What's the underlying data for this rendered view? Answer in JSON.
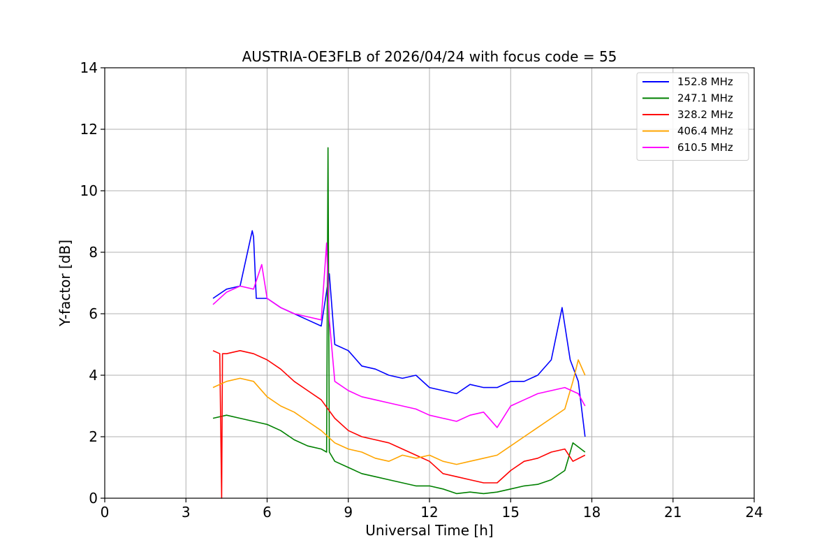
{
  "chart_data": {
    "type": "line",
    "title": "AUSTRIA-OE3FLB of 2026/04/24 with focus code = 55",
    "xlabel": "Universal Time [h]",
    "ylabel": "Y-factor [dB]",
    "xlim": [
      0,
      24
    ],
    "ylim": [
      0,
      14
    ],
    "xticks": [
      0,
      3,
      6,
      9,
      12,
      15,
      18,
      21,
      24
    ],
    "yticks": [
      0,
      2,
      4,
      6,
      8,
      10,
      12,
      14
    ],
    "grid": true,
    "legend_position": "top-right",
    "series": [
      {
        "name": "152.8 MHz",
        "color": "#0000ff",
        "x": [
          4.0,
          4.5,
          5.0,
          5.45,
          5.5,
          5.6,
          6.0,
          6.5,
          7.0,
          7.5,
          8.0,
          8.3,
          8.5,
          9.0,
          9.5,
          10.0,
          10.5,
          11.0,
          11.5,
          12.0,
          12.5,
          13.0,
          13.5,
          14.0,
          14.5,
          15.0,
          15.5,
          16.0,
          16.5,
          16.9,
          17.2,
          17.5,
          17.75
        ],
        "values": [
          6.5,
          6.8,
          6.9,
          8.7,
          8.5,
          6.5,
          6.5,
          6.2,
          6.0,
          5.8,
          5.6,
          7.3,
          5.0,
          4.8,
          4.3,
          4.2,
          4.0,
          3.9,
          4.0,
          3.6,
          3.5,
          3.4,
          3.7,
          3.6,
          3.6,
          3.8,
          3.8,
          4.0,
          4.5,
          6.2,
          4.5,
          3.8,
          2.0
        ]
      },
      {
        "name": "247.1 MHz",
        "color": "#008000",
        "x": [
          4.0,
          4.5,
          5.0,
          5.5,
          6.0,
          6.5,
          7.0,
          7.5,
          8.0,
          8.2,
          8.25,
          8.3,
          8.5,
          9.0,
          9.5,
          10.0,
          10.5,
          11.0,
          11.5,
          12.0,
          12.5,
          13.0,
          13.5,
          14.0,
          14.5,
          15.0,
          15.5,
          16.0,
          16.5,
          17.0,
          17.3,
          17.75
        ],
        "values": [
          2.6,
          2.7,
          2.6,
          2.5,
          2.4,
          2.2,
          1.9,
          1.7,
          1.6,
          1.5,
          11.4,
          1.5,
          1.2,
          1.0,
          0.8,
          0.7,
          0.6,
          0.5,
          0.4,
          0.4,
          0.3,
          0.15,
          0.2,
          0.15,
          0.2,
          0.3,
          0.4,
          0.45,
          0.6,
          0.9,
          1.8,
          1.5
        ]
      },
      {
        "name": "328.2 MHz",
        "color": "#ff0000",
        "x": [
          4.0,
          4.25,
          4.32,
          4.35,
          4.4,
          4.5,
          5.0,
          5.5,
          6.0,
          6.5,
          7.0,
          7.5,
          8.0,
          8.5,
          9.0,
          9.5,
          10.0,
          10.5,
          11.0,
          11.5,
          12.0,
          12.5,
          13.0,
          13.5,
          14.0,
          14.5,
          15.0,
          15.5,
          16.0,
          16.5,
          17.0,
          17.3,
          17.75
        ],
        "values": [
          4.8,
          4.7,
          0.0,
          4.7,
          4.7,
          4.7,
          4.8,
          4.7,
          4.5,
          4.2,
          3.8,
          3.5,
          3.2,
          2.6,
          2.2,
          2.0,
          1.9,
          1.8,
          1.6,
          1.4,
          1.2,
          0.8,
          0.7,
          0.6,
          0.5,
          0.5,
          0.9,
          1.2,
          1.3,
          1.5,
          1.6,
          1.2,
          1.4
        ]
      },
      {
        "name": "406.4 MHz",
        "color": "#ffa500",
        "x": [
          4.0,
          4.5,
          5.0,
          5.5,
          6.0,
          6.5,
          7.0,
          7.5,
          8.0,
          8.5,
          9.0,
          9.5,
          10.0,
          10.5,
          11.0,
          11.5,
          12.0,
          12.5,
          13.0,
          13.5,
          14.0,
          14.5,
          15.0,
          15.5,
          16.0,
          16.5,
          17.0,
          17.3,
          17.5,
          17.75
        ],
        "values": [
          3.6,
          3.8,
          3.9,
          3.8,
          3.3,
          3.0,
          2.8,
          2.5,
          2.2,
          1.8,
          1.6,
          1.5,
          1.3,
          1.2,
          1.4,
          1.3,
          1.4,
          1.2,
          1.1,
          1.2,
          1.3,
          1.4,
          1.7,
          2.0,
          2.3,
          2.6,
          2.9,
          3.8,
          4.5,
          4.0
        ]
      },
      {
        "name": "610.5 MHz",
        "color": "#ff00ff",
        "x": [
          4.0,
          4.5,
          5.0,
          5.5,
          5.8,
          6.0,
          6.5,
          7.0,
          7.5,
          8.0,
          8.2,
          8.3,
          8.5,
          9.0,
          9.5,
          10.0,
          10.5,
          11.0,
          11.5,
          12.0,
          12.5,
          13.0,
          13.5,
          14.0,
          14.5,
          15.0,
          15.5,
          16.0,
          16.5,
          17.0,
          17.5,
          17.75
        ],
        "values": [
          6.3,
          6.7,
          6.9,
          6.8,
          7.6,
          6.5,
          6.2,
          6.0,
          5.9,
          5.8,
          8.3,
          5.8,
          3.8,
          3.5,
          3.3,
          3.2,
          3.1,
          3.0,
          2.9,
          2.7,
          2.6,
          2.5,
          2.7,
          2.8,
          2.3,
          3.0,
          3.2,
          3.4,
          3.5,
          3.6,
          3.4,
          3.0
        ]
      }
    ]
  }
}
